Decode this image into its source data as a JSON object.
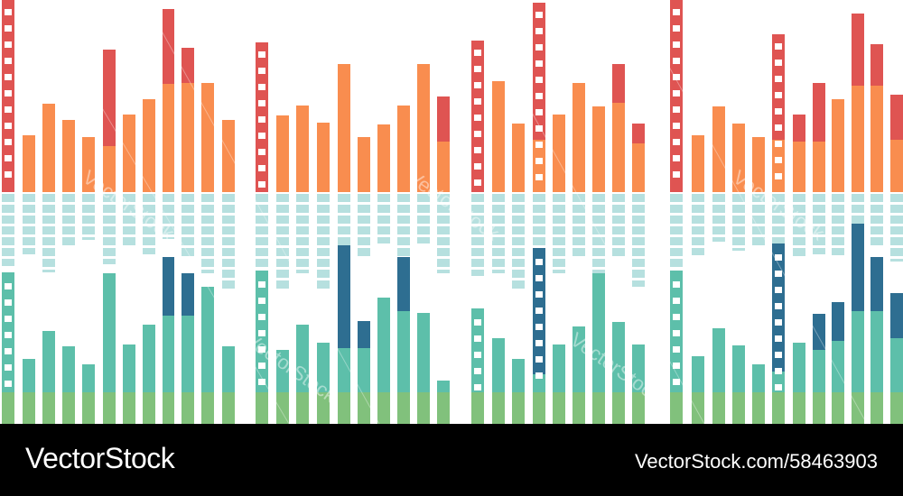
{
  "footer": {
    "brand": "VectorStock",
    "image_id": "VectorStock.com/58463903"
  },
  "watermark": {
    "text": "VectorStock"
  },
  "colors": {
    "red": "#df5452",
    "orange": "#f98d4f",
    "light_teal": "#b6e0df",
    "dark_blue": "#2e6e91",
    "teal": "#5dbfaa",
    "green": "#81c17c",
    "footer_bg": "#000000",
    "footer_text": "#ffffff"
  }
}
